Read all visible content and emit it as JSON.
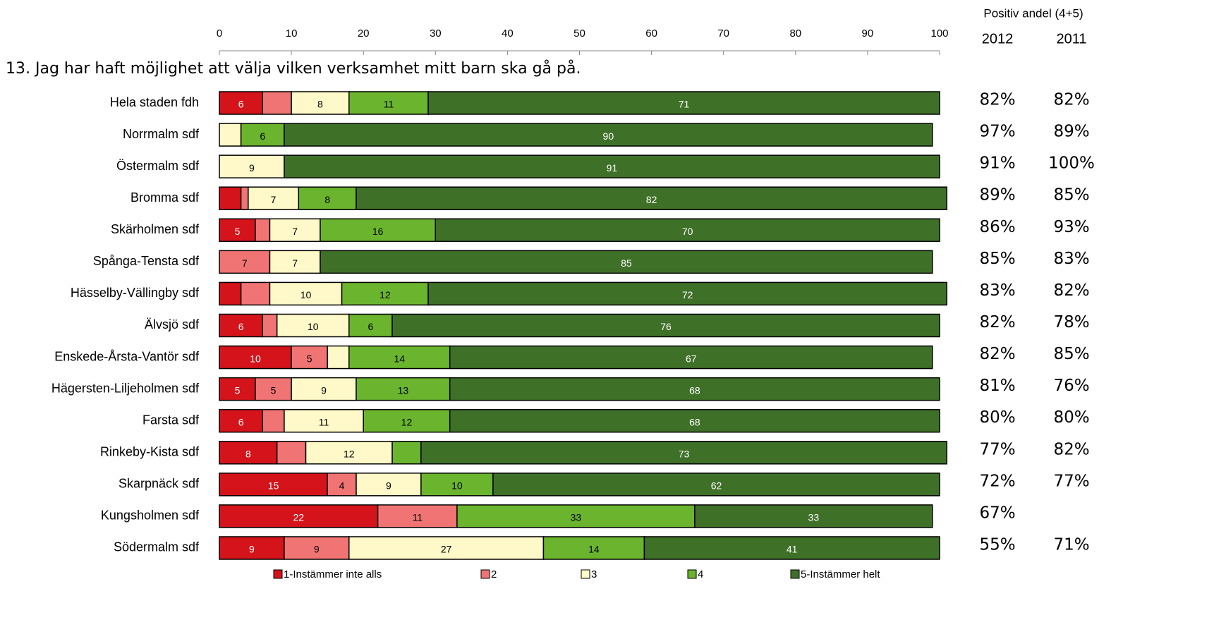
{
  "chart_data": {
    "type": "stacked-bar-horizontal",
    "title": "13. Jag har haft möjlighet att välja vilken verksamhet mitt barn ska gå på.",
    "categories": [
      "Hela staden fdh",
      "Norrmalm sdf",
      "Östermalm sdf",
      "Bromma sdf",
      "Skärholmen sdf",
      "Spånga-Tensta sdf",
      "Hässelby-Vällingby sdf",
      "Älvsjö sdf",
      "Enskede-Årsta-Vantör sdf",
      "Hägersten-Liljeholmen sdf",
      "Farsta sdf",
      "Rinkeby-Kista sdf",
      "Skarpnäck sdf",
      "Kungsholmen sdf",
      "Södermalm sdf"
    ],
    "xlim": [
      0,
      100
    ],
    "xticks": [
      0,
      10,
      20,
      30,
      40,
      50,
      60,
      70,
      80,
      90,
      100
    ],
    "series": [
      {
        "name": "1-Instämmer inte alls",
        "color": "#d4141a",
        "text_color": "#ffffff",
        "values": [
          6,
          0,
          0,
          3,
          5,
          0,
          3,
          6,
          10,
          5,
          6,
          8,
          15,
          22,
          9
        ],
        "value_labels": [
          "6",
          null,
          null,
          null,
          "5",
          null,
          null,
          "6",
          "10",
          "5",
          "6",
          "8",
          "15",
          "22",
          "9"
        ]
      },
      {
        "name": "2",
        "color": "#f07474",
        "text_color": "#000000",
        "values": [
          4,
          0,
          0,
          1,
          2,
          7,
          4,
          2,
          5,
          5,
          3,
          4,
          4,
          11,
          9
        ],
        "value_labels": [
          null,
          null,
          null,
          null,
          null,
          "7",
          null,
          null,
          "5",
          "5",
          null,
          null,
          "4",
          "11",
          "9"
        ]
      },
      {
        "name": "3",
        "color": "#fff8c8",
        "text_color": "#000000",
        "values": [
          8,
          3,
          9,
          7,
          7,
          7,
          10,
          10,
          3,
          9,
          11,
          12,
          9,
          0,
          27
        ],
        "value_labels": [
          "8",
          null,
          "9",
          "7",
          "7",
          "7",
          "10",
          "10",
          null,
          "9",
          "11",
          "12",
          "9",
          null,
          "27"
        ]
      },
      {
        "name": "4",
        "color": "#6ab42e",
        "text_color": "#000000",
        "values": [
          11,
          6,
          0,
          8,
          16,
          0,
          12,
          6,
          14,
          13,
          12,
          4,
          10,
          33,
          14
        ],
        "value_labels": [
          "11",
          "6",
          null,
          "8",
          "16",
          null,
          "12",
          "6",
          "14",
          "13",
          "12",
          null,
          "10",
          "33",
          "14"
        ]
      },
      {
        "name": "5-Instämmer helt",
        "color": "#3f7028",
        "text_color": "#ffffff",
        "values": [
          71,
          90,
          91,
          82,
          70,
          85,
          72,
          76,
          67,
          68,
          68,
          73,
          62,
          33,
          41
        ],
        "value_labels": [
          "71",
          "90",
          "91",
          "82",
          "70",
          "85",
          "72",
          "76",
          "67",
          "68",
          "68",
          "73",
          "62",
          "33",
          "41"
        ]
      }
    ],
    "side_header": "Positiv andel (4+5)",
    "side_columns": [
      {
        "name": "2012",
        "values": [
          82,
          97,
          91,
          89,
          86,
          85,
          83,
          82,
          82,
          81,
          80,
          77,
          72,
          67,
          55
        ],
        "value_labels": [
          "82%",
          "97%",
          "91%",
          "89%",
          "86%",
          "85%",
          "83%",
          "82%",
          "82%",
          "81%",
          "80%",
          "77%",
          "72%",
          "67%",
          "55%"
        ]
      },
      {
        "name": "2011",
        "values": [
          82,
          89,
          100,
          85,
          93,
          83,
          82,
          78,
          85,
          76,
          80,
          82,
          77,
          null,
          71
        ],
        "value_labels": [
          "82%",
          "89%",
          "100%",
          "85%",
          "93%",
          "83%",
          "82%",
          "78%",
          "85%",
          "76%",
          "80%",
          "82%",
          "77%",
          null,
          "71%"
        ]
      }
    ]
  }
}
